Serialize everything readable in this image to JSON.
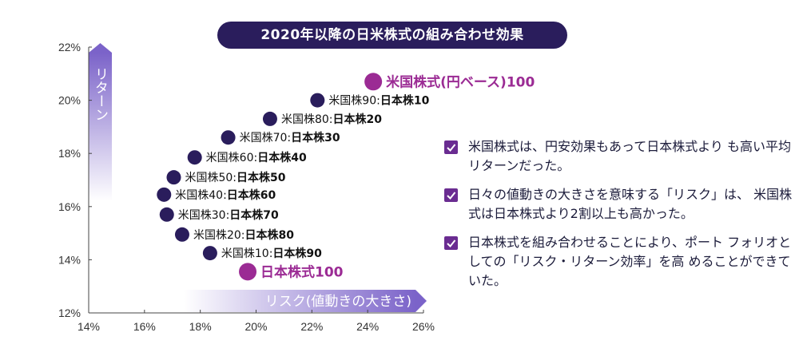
{
  "chart_title": "2020年以降の日米株式の組み合わせ効果",
  "chart_data": {
    "type": "scatter",
    "title": "2020年以降の日米株式の組み合わせ効果",
    "xlabel": "リスク(値動きの大きさ)",
    "ylabel": "リターン",
    "xlim": [
      14,
      26
    ],
    "ylim": [
      12,
      22
    ],
    "x_ticks": [
      "14%",
      "16%",
      "18%",
      "20%",
      "22%",
      "24%",
      "26%"
    ],
    "y_ticks": [
      "12%",
      "14%",
      "16%",
      "18%",
      "20%",
      "22%"
    ],
    "grid": false,
    "points": [
      {
        "us": "米国株式(円ベース)100",
        "jp": "",
        "x": 24.2,
        "y": 20.7,
        "highlight": true
      },
      {
        "us": "米国株90:",
        "jp": "日本株10",
        "x": 22.2,
        "y": 20.0,
        "highlight": false
      },
      {
        "us": "米国株80:",
        "jp": "日本株20",
        "x": 20.5,
        "y": 19.3,
        "highlight": false
      },
      {
        "us": "米国株70:",
        "jp": "日本株30",
        "x": 19.0,
        "y": 18.6,
        "highlight": false
      },
      {
        "us": "米国株60:",
        "jp": "日本株40",
        "x": 17.8,
        "y": 17.85,
        "highlight": false
      },
      {
        "us": "米国株50:",
        "jp": "日本株50",
        "x": 17.05,
        "y": 17.1,
        "highlight": false
      },
      {
        "us": "米国株40:",
        "jp": "日本株60",
        "x": 16.7,
        "y": 16.45,
        "highlight": false
      },
      {
        "us": "米国株30:",
        "jp": "日本株70",
        "x": 16.8,
        "y": 15.7,
        "highlight": false
      },
      {
        "us": "米国株20:",
        "jp": "日本株80",
        "x": 17.35,
        "y": 14.95,
        "highlight": false
      },
      {
        "us": "米国株10:",
        "jp": "日本株90",
        "x": 18.35,
        "y": 14.25,
        "highlight": false
      },
      {
        "us": "日本株式100",
        "jp": "",
        "x": 19.7,
        "y": 13.55,
        "highlight": true
      }
    ]
  },
  "notes": [
    "米国株式は、円安効果もあって日本株式より も高い平均リターンだった。",
    "日々の値動きの大きさを意味する「リスク」は、 米国株式は日本株式より2割以上も高かった。",
    "日本株式を組み合わせることにより、ポート フォリオとしての「リスク・リターン効率」を高 めることができていた。"
  ],
  "colors": {
    "title_bg": "#2a1d5c",
    "point": "#2a1d5c",
    "highlight": "#9b2b94",
    "arrow": "#7b63c9",
    "check": "#6a2c91",
    "text": "#1b1b3a"
  }
}
